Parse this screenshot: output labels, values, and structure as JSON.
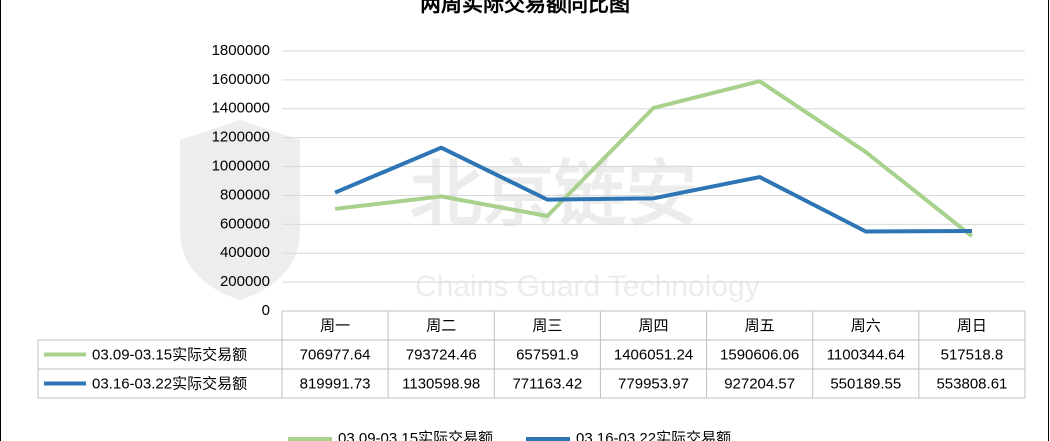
{
  "chart_data": {
    "type": "line",
    "title": "两周实际交易额同比图",
    "watermark": "北京链安",
    "watermark_subtitle": "Chains Guard Technology",
    "categories": [
      "周一",
      "周二",
      "周三",
      "周四",
      "周五",
      "周六",
      "周日"
    ],
    "series": [
      {
        "name": "03.09-03.15实际交易额",
        "color": "#a9d18e",
        "values": [
          706977.64,
          793724.46,
          657591.9,
          1406051.24,
          1590606.06,
          1100344.64,
          517518.8
        ]
      },
      {
        "name": "03.16-03.22实际交易额",
        "color": "#2e75b6",
        "values": [
          819991.73,
          1130598.98,
          771163.42,
          779953.97,
          927204.57,
          550189.55,
          553808.61
        ]
      }
    ],
    "ylim": [
      0,
      1800000
    ],
    "yticks": [
      0,
      200000,
      400000,
      600000,
      800000,
      1000000,
      1200000,
      1400000,
      1600000,
      1800000
    ],
    "grid": true
  }
}
